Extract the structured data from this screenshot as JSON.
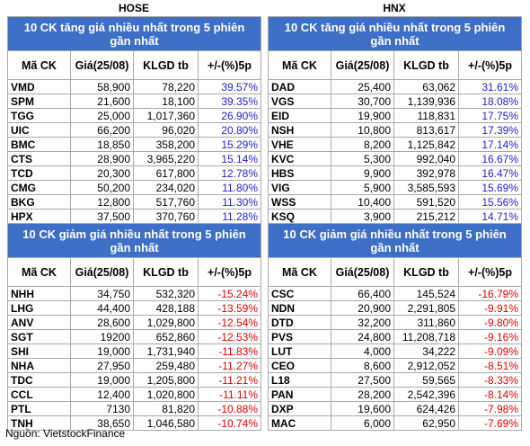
{
  "hose": {
    "title": "HOSE",
    "gainers_title": "10 CK tăng giá nhiều nhất trong 5 phiên gần nhất",
    "losers_title": "10 CK giảm giá nhiều nhất trong 5 phiên gần nhất",
    "headers": [
      "Mã CK",
      "Giá(25/08)",
      "KLGD tb",
      "+/-(%)5p"
    ],
    "gainers": [
      [
        "VMD",
        "58,900",
        "78,220",
        "39.57%"
      ],
      [
        "SPM",
        "21,600",
        "18,100",
        "39.35%"
      ],
      [
        "TGG",
        "25,000",
        "1,017,360",
        "26.90%"
      ],
      [
        "UIC",
        "66,200",
        "96,020",
        "20.80%"
      ],
      [
        "BMC",
        "18,850",
        "358,200",
        "15.29%"
      ],
      [
        "CTS",
        "28,900",
        "3,965,220",
        "15.14%"
      ],
      [
        "TCD",
        "20,300",
        "617,800",
        "12.78%"
      ],
      [
        "CMG",
        "50,200",
        "234,020",
        "11.80%"
      ],
      [
        "BKG",
        "12,800",
        "517,760",
        "11.30%"
      ],
      [
        "HPX",
        "37,500",
        "370,760",
        "11.28%"
      ]
    ],
    "losers": [
      [
        "NHH",
        "34,750",
        "532,320",
        "-15.24%"
      ],
      [
        "LHG",
        "44,400",
        "428,188",
        "-13.59%"
      ],
      [
        "ANV",
        "28,600",
        "1,029,800",
        "-12.54%"
      ],
      [
        "SGT",
        "19200",
        "652,860",
        "-12.53%"
      ],
      [
        "SHI",
        "19,000",
        "1,731,940",
        "-11.83%"
      ],
      [
        "NHA",
        "27,950",
        "259,480",
        "-11.27%"
      ],
      [
        "TDC",
        "19,000",
        "1,205,800",
        "-11.21%"
      ],
      [
        "CCL",
        "12,400",
        "1,020,800",
        "-11.11%"
      ],
      [
        "PTL",
        "7130",
        "81,820",
        "-10.88%"
      ],
      [
        "TNH",
        "38,650",
        "1,046,580",
        "-10.74%"
      ]
    ]
  },
  "hnx": {
    "title": "HNX",
    "gainers_title": "10 CK tăng giá nhiều nhất trong 5 phiên gần nhất",
    "losers_title": "10 CK giảm giá nhiều nhất trong 5 phiên gần nhất",
    "headers": [
      "Mã CK",
      "Giá(25/08)",
      "KLGD tb",
      "+/-(%)5p"
    ],
    "gainers": [
      [
        "DAD",
        "25,400",
        "63,062",
        "31.61%"
      ],
      [
        "VGS",
        "30,700",
        "1,139,936",
        "18.08%"
      ],
      [
        "EID",
        "19,900",
        "118,831",
        "17.75%"
      ],
      [
        "NSH",
        "10,800",
        "813,617",
        "17.39%"
      ],
      [
        "VHE",
        "8,200",
        "1,125,842",
        "17.14%"
      ],
      [
        "KVC",
        "5,300",
        "992,040",
        "16.67%"
      ],
      [
        "HBS",
        "9,900",
        "392,978",
        "16.47%"
      ],
      [
        "VIG",
        "5,900",
        "3,585,593",
        "15.69%"
      ],
      [
        "WSS",
        "10,400",
        "591,520",
        "15.56%"
      ],
      [
        "KSQ",
        "3,900",
        "215,212",
        "14.71%"
      ]
    ],
    "losers": [
      [
        "CSC",
        "66,400",
        "145,524",
        "-16.79%"
      ],
      [
        "NDN",
        "20,900",
        "2,291,805",
        "-9.91%"
      ],
      [
        "DTD",
        "32,200",
        "311,860",
        "-9.80%"
      ],
      [
        "PVS",
        "24,800",
        "11,208,718",
        "-9.16%"
      ],
      [
        "LUT",
        "4,000",
        "34,222",
        "-9.09%"
      ],
      [
        "CEO",
        "8,600",
        "2,912,052",
        "-8.51%"
      ],
      [
        "L18",
        "27,500",
        "59,565",
        "-8.33%"
      ],
      [
        "PAN",
        "28,200",
        "2,542,396",
        "-8.14%"
      ],
      [
        "DXP",
        "19,600",
        "624,426",
        "-7.98%"
      ],
      [
        "MAC",
        "6,000",
        "62,950",
        "-7.69%"
      ]
    ]
  },
  "source": "Nguồn: VietstockFinance",
  "colors": {
    "header_bg": "#3d6fc7",
    "header_text": "#ffffff",
    "gain": "#2222cc",
    "loss": "#e00000",
    "border": "#a8a8a8"
  }
}
